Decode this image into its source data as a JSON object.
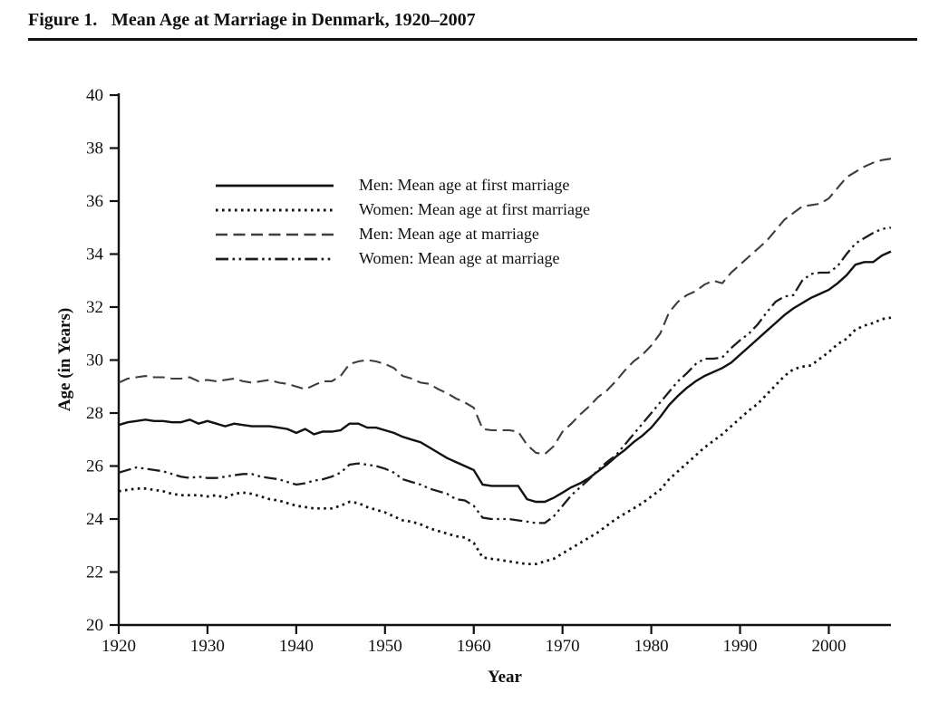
{
  "figure": {
    "label": "Figure 1.",
    "title": "Mean Age at Marriage in Denmark, 1920–2007"
  },
  "axes": {
    "y_title": "Age (in Years)",
    "x_title": "Year"
  },
  "chart_data": {
    "type": "line",
    "title": "Mean Age at Marriage in Denmark, 1920–2007",
    "xlabel": "Year",
    "ylabel": "Age (in Years)",
    "xlim": [
      1920,
      2007
    ],
    "ylim": [
      20,
      40
    ],
    "xticks": [
      1920,
      1930,
      1940,
      1950,
      1960,
      1970,
      1980,
      1990,
      2000
    ],
    "yticks": [
      20,
      22,
      24,
      26,
      28,
      30,
      32,
      34,
      36,
      38,
      40
    ],
    "grid": false,
    "legend_position": "upper-left-inside",
    "years": [
      1920,
      1921,
      1922,
      1923,
      1924,
      1925,
      1926,
      1927,
      1928,
      1929,
      1930,
      1931,
      1932,
      1933,
      1934,
      1935,
      1936,
      1937,
      1938,
      1939,
      1940,
      1941,
      1942,
      1943,
      1944,
      1945,
      1946,
      1947,
      1948,
      1949,
      1950,
      1951,
      1952,
      1953,
      1954,
      1955,
      1956,
      1957,
      1958,
      1959,
      1960,
      1961,
      1962,
      1963,
      1964,
      1965,
      1966,
      1967,
      1968,
      1969,
      1970,
      1971,
      1972,
      1973,
      1974,
      1975,
      1976,
      1977,
      1978,
      1979,
      1980,
      1981,
      1982,
      1983,
      1984,
      1985,
      1986,
      1987,
      1988,
      1989,
      1990,
      1991,
      1992,
      1993,
      1994,
      1995,
      1996,
      1997,
      1998,
      1999,
      2000,
      2001,
      2002,
      2003,
      2004,
      2005,
      2006,
      2007
    ],
    "series": [
      {
        "name": "Men: Mean age at first marriage",
        "style": "solid",
        "color": "#111111",
        "values": [
          27.55,
          27.65,
          27.7,
          27.75,
          27.7,
          27.7,
          27.65,
          27.65,
          27.75,
          27.6,
          27.7,
          27.6,
          27.5,
          27.6,
          27.55,
          27.5,
          27.5,
          27.5,
          27.45,
          27.4,
          27.25,
          27.4,
          27.2,
          27.3,
          27.3,
          27.35,
          27.6,
          27.6,
          27.45,
          27.45,
          27.35,
          27.25,
          27.1,
          27.0,
          26.9,
          26.7,
          26.5,
          26.3,
          26.15,
          26.0,
          25.85,
          25.3,
          25.25,
          25.25,
          25.25,
          25.25,
          24.75,
          24.65,
          24.65,
          24.8,
          25.0,
          25.2,
          25.35,
          25.55,
          25.8,
          26.05,
          26.35,
          26.6,
          26.9,
          27.15,
          27.45,
          27.85,
          28.3,
          28.65,
          28.95,
          29.2,
          29.4,
          29.55,
          29.7,
          29.9,
          30.2,
          30.5,
          30.8,
          31.1,
          31.4,
          31.7,
          31.95,
          32.15,
          32.35,
          32.5,
          32.65,
          32.9,
          33.2,
          33.6,
          33.7,
          33.7,
          33.95,
          34.1
        ]
      },
      {
        "name": "Women: Mean age at first marriage",
        "style": "dotted",
        "color": "#111111",
        "values": [
          25.05,
          25.1,
          25.15,
          25.15,
          25.1,
          25.05,
          24.95,
          24.9,
          24.9,
          24.9,
          24.85,
          24.9,
          24.8,
          24.95,
          25.0,
          24.95,
          24.85,
          24.75,
          24.7,
          24.6,
          24.5,
          24.45,
          24.4,
          24.4,
          24.4,
          24.5,
          24.65,
          24.6,
          24.45,
          24.35,
          24.25,
          24.1,
          23.95,
          23.9,
          23.8,
          23.65,
          23.55,
          23.45,
          23.35,
          23.3,
          23.1,
          22.55,
          22.5,
          22.45,
          22.4,
          22.35,
          22.3,
          22.3,
          22.4,
          22.5,
          22.7,
          22.9,
          23.1,
          23.3,
          23.5,
          23.75,
          24.0,
          24.2,
          24.4,
          24.6,
          24.85,
          25.1,
          25.5,
          25.8,
          26.1,
          26.4,
          26.7,
          26.95,
          27.2,
          27.5,
          27.8,
          28.1,
          28.35,
          28.7,
          29.05,
          29.4,
          29.65,
          29.75,
          29.8,
          30.05,
          30.3,
          30.6,
          30.8,
          31.15,
          31.3,
          31.4,
          31.55,
          31.6
        ]
      },
      {
        "name": "Men: Mean age at marriage",
        "style": "dashed",
        "color": "#3d3d3d",
        "values": [
          29.15,
          29.3,
          29.35,
          29.4,
          29.35,
          29.35,
          29.3,
          29.3,
          29.35,
          29.2,
          29.25,
          29.2,
          29.25,
          29.3,
          29.2,
          29.15,
          29.2,
          29.25,
          29.15,
          29.1,
          29.0,
          28.9,
          29.05,
          29.2,
          29.2,
          29.4,
          29.85,
          29.95,
          30.0,
          29.95,
          29.85,
          29.7,
          29.4,
          29.3,
          29.15,
          29.1,
          28.9,
          28.75,
          28.55,
          28.4,
          28.2,
          27.4,
          27.35,
          27.35,
          27.35,
          27.3,
          26.8,
          26.5,
          26.45,
          26.75,
          27.3,
          27.6,
          27.95,
          28.25,
          28.6,
          28.85,
          29.2,
          29.6,
          29.95,
          30.2,
          30.55,
          31.0,
          31.8,
          32.2,
          32.45,
          32.6,
          32.85,
          33.0,
          32.9,
          33.3,
          33.6,
          33.9,
          34.2,
          34.5,
          34.9,
          35.3,
          35.55,
          35.8,
          35.85,
          35.9,
          36.1,
          36.5,
          36.9,
          37.1,
          37.3,
          37.45,
          37.55,
          37.6
        ]
      },
      {
        "name": "Women: Mean age at marriage",
        "style": "dash-dot-dot",
        "color": "#1c1c1c",
        "values": [
          25.75,
          25.85,
          25.95,
          25.9,
          25.85,
          25.8,
          25.7,
          25.6,
          25.55,
          25.6,
          25.55,
          25.55,
          25.6,
          25.65,
          25.7,
          25.7,
          25.6,
          25.55,
          25.5,
          25.4,
          25.3,
          25.35,
          25.45,
          25.5,
          25.6,
          25.75,
          26.05,
          26.1,
          26.05,
          26.0,
          25.9,
          25.75,
          25.5,
          25.4,
          25.3,
          25.15,
          25.05,
          24.95,
          24.75,
          24.7,
          24.5,
          24.05,
          24.0,
          24.0,
          24.0,
          23.95,
          23.9,
          23.85,
          23.85,
          24.1,
          24.5,
          24.9,
          25.2,
          25.5,
          25.85,
          26.15,
          26.4,
          26.8,
          27.2,
          27.6,
          28.0,
          28.4,
          28.8,
          29.2,
          29.5,
          29.85,
          30.05,
          30.05,
          30.1,
          30.45,
          30.75,
          31.0,
          31.35,
          31.8,
          32.2,
          32.4,
          32.45,
          33.0,
          33.25,
          33.3,
          33.3,
          33.55,
          34.0,
          34.4,
          34.6,
          34.8,
          34.95,
          35.0
        ]
      }
    ]
  }
}
